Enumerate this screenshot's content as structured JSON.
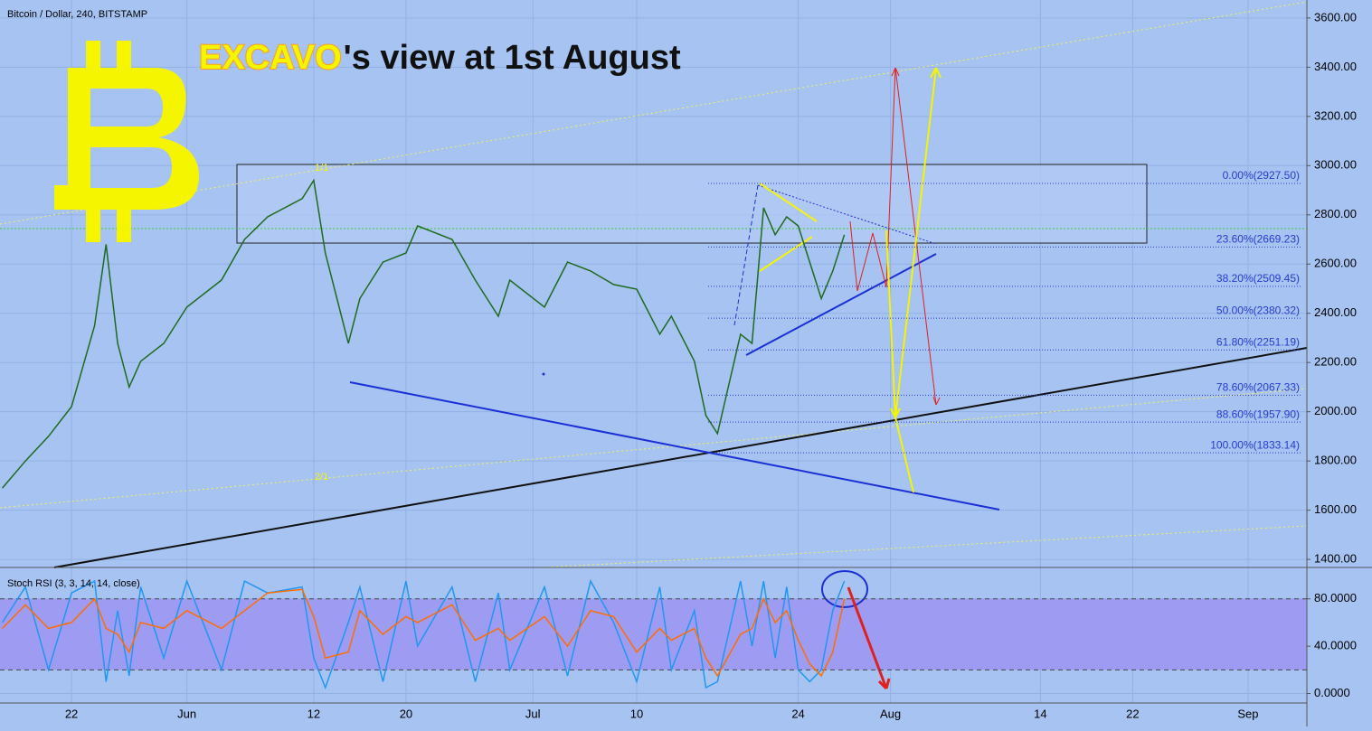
{
  "header": {
    "symbol": "Bitcoin / Dollar, 240, BITSTAMP",
    "title_parts": [
      "EXCAVO",
      "'s view at 1st August"
    ]
  },
  "annotations": {
    "fan_labels": [
      "1/1",
      "2/1"
    ]
  },
  "chart_data": [
    {
      "type": "line",
      "x": [
        136,
        138,
        140,
        142,
        144,
        145,
        146,
        147,
        148,
        150,
        152,
        155,
        157,
        159,
        162,
        163,
        164,
        166,
        167,
        169,
        171,
        172,
        175,
        177,
        179,
        180,
        183,
        185,
        187,
        189,
        191,
        193,
        194,
        196,
        197,
        198,
        200,
        201,
        202,
        203,
        204,
        205,
        206,
        207,
        208,
        209
      ],
      "series": [
        {
          "color": "#1e6b1e",
          "values": [
            1690,
            1800,
            1900,
            2021,
            2350,
            2680,
            2278,
            2100,
            2205,
            2278,
            2425,
            2535,
            2700,
            2792,
            2866,
            2940,
            2645,
            2278,
            2460,
            2608,
            2645,
            2755,
            2700,
            2535,
            2388,
            2535,
            2425,
            2608,
            2572,
            2517,
            2498,
            2315,
            2388,
            2205,
            1985,
            1911,
            2315,
            2278,
            2829,
            2719,
            2792,
            2755,
            2608,
            2460,
            2572,
            2719
          ]
        }
      ],
      "xlim": [
        135.8,
        249.1
      ],
      "ylim": [
        1371,
        3673
      ],
      "yticks": [
        {
          "value": 1400,
          "label": "1400.00"
        },
        {
          "value": 1600,
          "label": "1600.00"
        },
        {
          "value": 1800,
          "label": "1800.00"
        },
        {
          "value": 2000,
          "label": "2000.00"
        },
        {
          "value": 2200,
          "label": "2200.00"
        },
        {
          "value": 2400,
          "label": "2400.00"
        },
        {
          "value": 2600,
          "label": "2600.00"
        },
        {
          "value": 2800,
          "label": "2800.00"
        },
        {
          "value": 3000,
          "label": "3000.00"
        },
        {
          "value": 3200,
          "label": "3200.00"
        },
        {
          "value": 3400,
          "label": "3400.00"
        },
        {
          "value": 3600,
          "label": "3600.00"
        }
      ],
      "fib_levels": [
        {
          "value": 2927.5,
          "label": "0.00%(2927.50)"
        },
        {
          "value": 2669.23,
          "label": "23.60%(2669.23)"
        },
        {
          "value": 2509.45,
          "label": "38.20%(2509.45)"
        },
        {
          "value": 2380.32,
          "label": "50.00%(2380.32)"
        },
        {
          "value": 2251.19,
          "label": "61.80%(2251.19)"
        },
        {
          "value": 2067.33,
          "label": "78.60%(2067.33)"
        },
        {
          "value": 1957.9,
          "label": "88.60%(1957.90)"
        },
        {
          "value": 1833.14,
          "label": "100.00%(1833.14)"
        }
      ],
      "grid": true
    },
    {
      "type": "line",
      "title": "Stoch RSI (3, 3, 14, 14, close)",
      "x": [
        136,
        138,
        140,
        142,
        144,
        145,
        146,
        147,
        148,
        150,
        152,
        155,
        157,
        159,
        162,
        163,
        164,
        166,
        167,
        169,
        171,
        172,
        175,
        177,
        179,
        180,
        183,
        185,
        187,
        189,
        191,
        193,
        194,
        196,
        197,
        198,
        200,
        201,
        202,
        203,
        204,
        205,
        206,
        207,
        208,
        209
      ],
      "series": [
        {
          "color": "#2196f3",
          "values": [
            60,
            90,
            20,
            85,
            95,
            10,
            70,
            15,
            90,
            30,
            95,
            20,
            95,
            85,
            90,
            30,
            5,
            60,
            90,
            10,
            95,
            40,
            90,
            10,
            85,
            20,
            90,
            15,
            95,
            60,
            10,
            90,
            20,
            70,
            5,
            10,
            95,
            40,
            95,
            30,
            90,
            20,
            10,
            20,
            70,
            95
          ]
        },
        {
          "color": "#ff6d00",
          "values": [
            55,
            75,
            55,
            60,
            80,
            55,
            50,
            35,
            60,
            55,
            70,
            55,
            70,
            85,
            88,
            65,
            30,
            35,
            70,
            50,
            65,
            60,
            75,
            45,
            55,
            45,
            65,
            40,
            70,
            65,
            35,
            55,
            45,
            55,
            30,
            15,
            50,
            55,
            80,
            60,
            70,
            45,
            25,
            15,
            35,
            80
          ]
        }
      ],
      "xlim": [
        135.8,
        249.1
      ],
      "ylim": [
        -8,
        105
      ],
      "yticks": [
        {
          "value": 0,
          "label": "0.0000"
        },
        {
          "value": 40,
          "label": "40.0000"
        },
        {
          "value": 80,
          "label": "80.0000"
        }
      ],
      "band": [
        20,
        80
      ],
      "xticks": [
        {
          "value": 142,
          "label": "22"
        },
        {
          "value": 152,
          "label": "Jun"
        },
        {
          "value": 163,
          "label": "12"
        },
        {
          "value": 171,
          "label": "20"
        },
        {
          "value": 182,
          "label": "Jul"
        },
        {
          "value": 191,
          "label": "10"
        },
        {
          "value": 205,
          "label": "24"
        },
        {
          "value": 213,
          "label": "Aug"
        },
        {
          "value": 226,
          "label": "14"
        },
        {
          "value": 234,
          "label": "22"
        },
        {
          "value": 244,
          "label": "Sep"
        }
      ],
      "grid": true
    }
  ]
}
